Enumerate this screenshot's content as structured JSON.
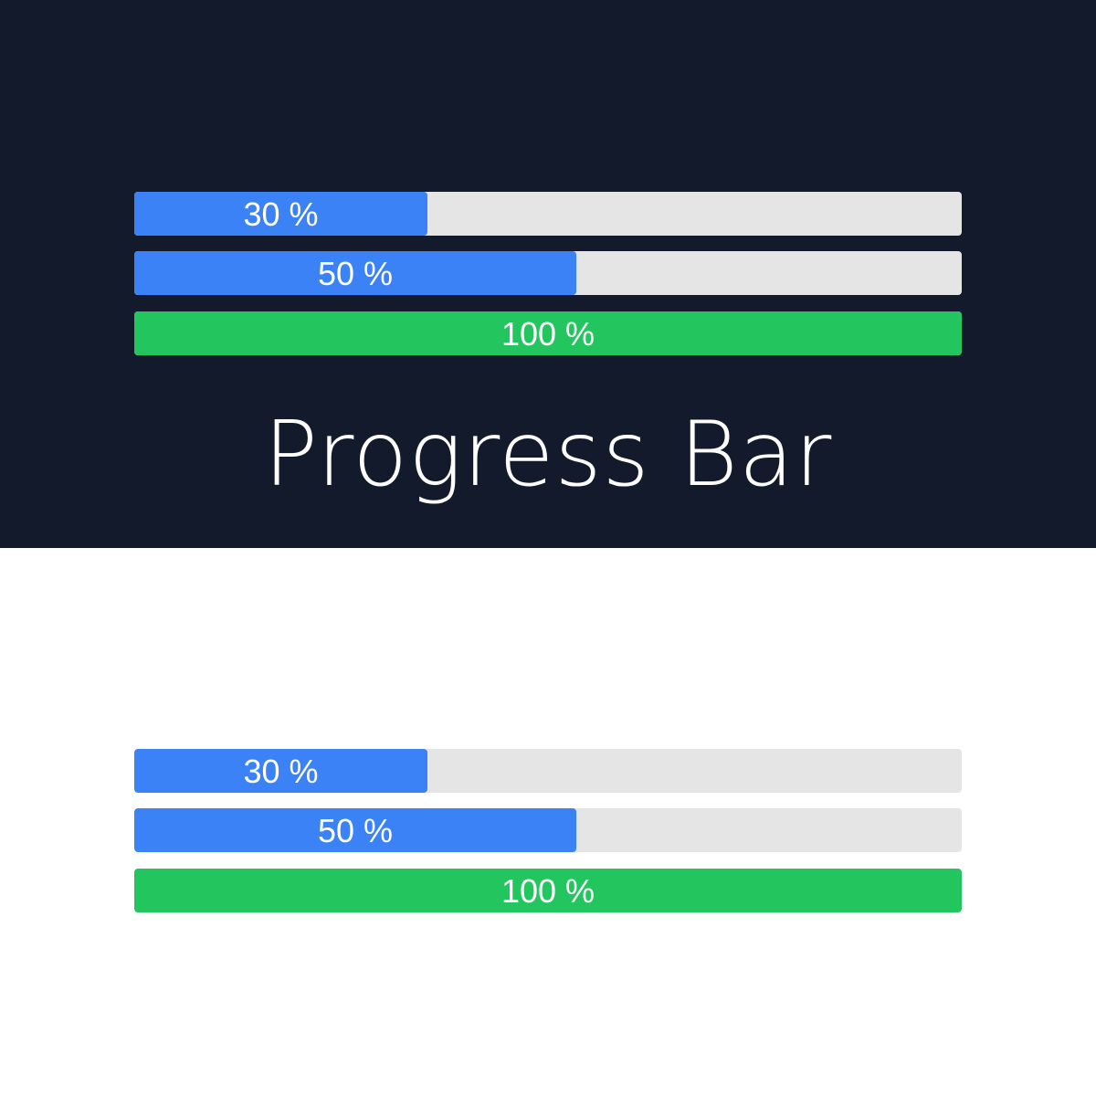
{
  "colors": {
    "dark_background": "#131a2b",
    "light_background": "#ffffff",
    "track": "#e5e5e5",
    "blue_fill": "#3b82f6",
    "green_fill": "#22c55e",
    "label": "#ffffff"
  },
  "dark_panel": {
    "title": "Progress Bar",
    "bars": [
      {
        "value": 30,
        "label": "30 %",
        "color": "#3b82f6"
      },
      {
        "value": 50,
        "label": "50 %",
        "color": "#3b82f6"
      },
      {
        "value": 100,
        "label": "100 %",
        "color": "#22c55e"
      }
    ]
  },
  "light_panel": {
    "bars": [
      {
        "value": 30,
        "label": "30 %",
        "color": "#3b82f6"
      },
      {
        "value": 50,
        "label": "50 %",
        "color": "#3b82f6"
      },
      {
        "value": 100,
        "label": "100 %",
        "color": "#22c55e"
      }
    ]
  }
}
